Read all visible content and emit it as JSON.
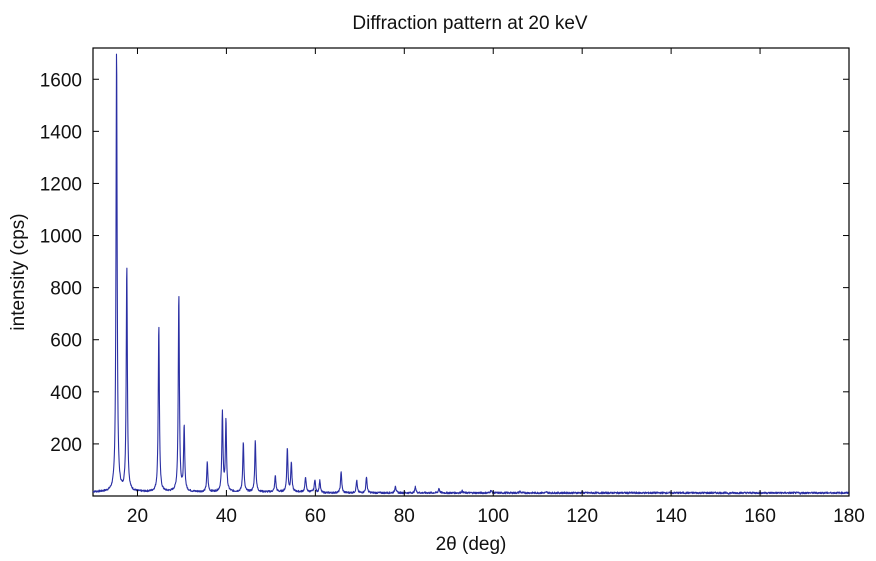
{
  "chart_data": {
    "type": "line",
    "title": "Diffraction pattern at 20 keV",
    "xlabel": "2θ (deg)",
    "ylabel": "intensity (cps)",
    "xlim": [
      10,
      180
    ],
    "ylim": [
      0,
      1720
    ],
    "x_ticks": [
      20,
      40,
      60,
      80,
      100,
      120,
      140,
      160,
      180
    ],
    "y_ticks": [
      200,
      400,
      600,
      800,
      1000,
      1200,
      1400,
      1600
    ],
    "grid": false,
    "legend": "none",
    "colors": {
      "line": "#2a2fa3",
      "axes": "#000000"
    },
    "series": [
      {
        "peaks": [
          {
            "x": 15.3,
            "y": 1720
          },
          {
            "x": 17.6,
            "y": 880
          },
          {
            "x": 24.8,
            "y": 655
          },
          {
            "x": 29.3,
            "y": 770
          },
          {
            "x": 30.5,
            "y": 260
          },
          {
            "x": 35.7,
            "y": 125
          },
          {
            "x": 39.1,
            "y": 320
          },
          {
            "x": 39.9,
            "y": 285
          },
          {
            "x": 43.8,
            "y": 205
          },
          {
            "x": 46.5,
            "y": 210
          },
          {
            "x": 51.0,
            "y": 75
          },
          {
            "x": 53.7,
            "y": 180
          },
          {
            "x": 54.6,
            "y": 125
          },
          {
            "x": 57.8,
            "y": 70
          },
          {
            "x": 59.9,
            "y": 60
          },
          {
            "x": 61.0,
            "y": 60
          },
          {
            "x": 65.8,
            "y": 95
          },
          {
            "x": 69.3,
            "y": 60
          },
          {
            "x": 71.5,
            "y": 75
          },
          {
            "x": 78.0,
            "y": 40
          },
          {
            "x": 82.5,
            "y": 35
          },
          {
            "x": 87.8,
            "y": 30
          },
          {
            "x": 93.0,
            "y": 20
          },
          {
            "x": 99.5,
            "y": 22
          },
          {
            "x": 106.0,
            "y": 18
          },
          {
            "x": 112.0,
            "y": 15
          },
          {
            "x": 120.0,
            "y": 14
          },
          {
            "x": 131.0,
            "y": 12
          },
          {
            "x": 141.0,
            "y": 12
          },
          {
            "x": 153.0,
            "y": 10
          },
          {
            "x": 160.0,
            "y": 12
          },
          {
            "x": 169.0,
            "y": 10
          }
        ],
        "baseline": 12,
        "peak_width_deg": 0.3
      }
    ]
  }
}
